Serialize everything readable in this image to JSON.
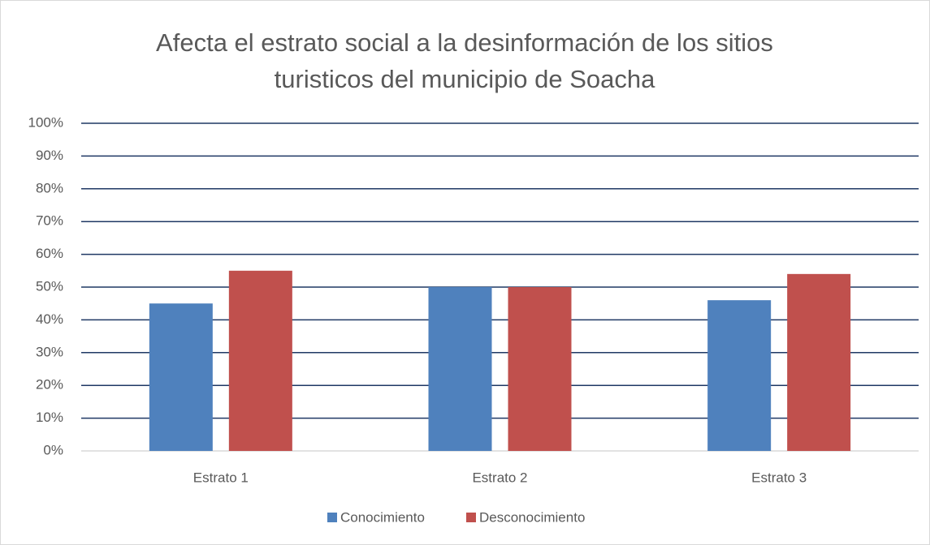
{
  "chart_data": {
    "type": "bar",
    "title": "Afecta el estrato social a la desinformación de los sitios turisticos del municipio de Soacha",
    "categories": [
      "Estrato 1",
      "Estrato 2",
      "Estrato 3"
    ],
    "series": [
      {
        "name": "Conocimiento",
        "color": "#4f81bd",
        "values": [
          45,
          50,
          46
        ]
      },
      {
        "name": "Desconocimiento",
        "color": "#c0504d",
        "values": [
          55,
          50,
          54
        ]
      }
    ],
    "ylim": [
      0,
      100
    ],
    "yticks": [
      {
        "value": 0,
        "label": "0%"
      },
      {
        "value": 10,
        "label": "10%"
      },
      {
        "value": 20,
        "label": "20%"
      },
      {
        "value": 30,
        "label": "30%"
      },
      {
        "value": 40,
        "label": "40%"
      },
      {
        "value": 50,
        "label": "50%"
      },
      {
        "value": 60,
        "label": "60%"
      },
      {
        "value": 70,
        "label": "70%"
      },
      {
        "value": 80,
        "label": "80%"
      },
      {
        "value": 90,
        "label": "90%"
      },
      {
        "value": 100,
        "label": "100%"
      }
    ],
    "grid": true,
    "legend": "bottom"
  }
}
